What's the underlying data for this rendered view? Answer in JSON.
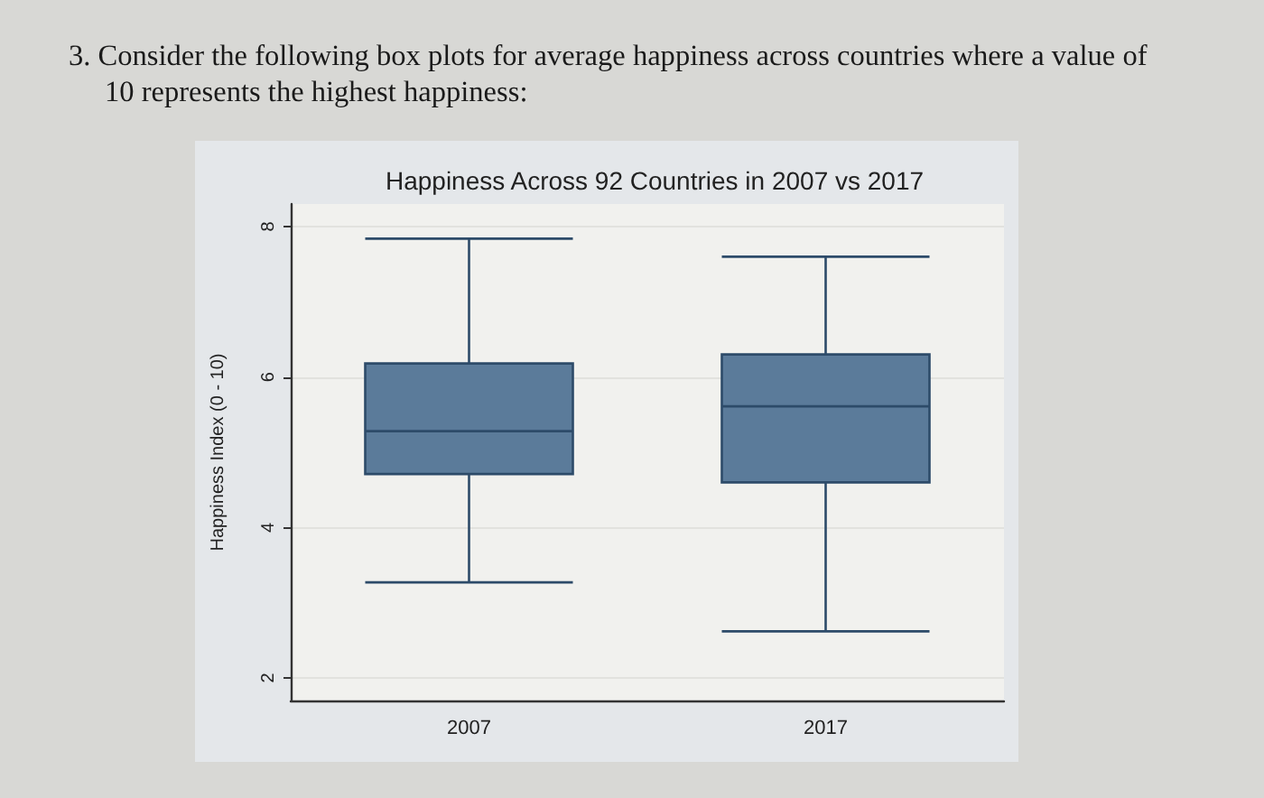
{
  "chart_data": {
    "type": "box",
    "title": "Happiness Across 92 Countries in 2007 vs 2017",
    "ylabel": "Happiness Index (0 - 10)",
    "annotations": [
      "3. Consider the following box plots for average happiness across countries where a value of 10 represents the highest happiness:"
    ],
    "categories": [
      "2007",
      "2017"
    ],
    "series": [
      {
        "color": "#5b7b9a",
        "boxes": [
          {
            "low": 3.27,
            "q1": 4.71,
            "median": 5.28,
            "q3": 6.18,
            "high": 7.84
          },
          {
            "low": 2.62,
            "q1": 4.6,
            "median": 5.61,
            "q3": 6.3,
            "high": 7.6
          }
        ]
      }
    ],
    "ylim": [
      1.7,
      8.3
    ],
    "yticks": [
      2,
      4,
      6,
      8
    ],
    "grid": "y"
  }
}
